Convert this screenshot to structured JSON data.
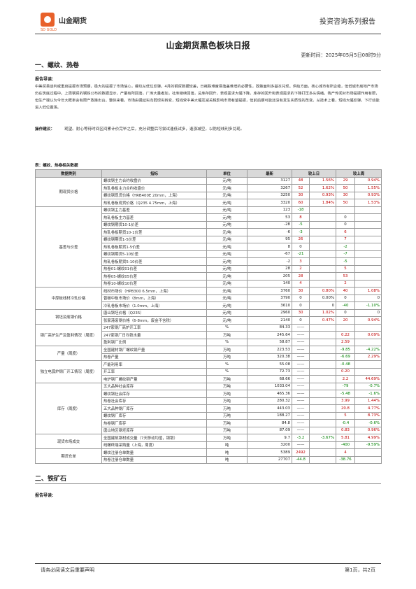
{
  "header": {
    "brand": "山金期货",
    "brand_sub": "SD GOLD",
    "series": "投资咨询系列报告"
  },
  "title": "山金期货黑色板块日报",
  "update_time": "更新时间：2025年05月5日08时9分",
  "section1": {
    "heading": "一、螺纹、热卷",
    "guide_label": "报告导读：",
    "guide_text": "中美贸易谈判或重启提振市场预期，极大的提振了市场信心，螺纹从低位反弹。4月的钢贸数据较差，日耗跌难度易落盖难增的必要性，政策面利多基本兑现。供给方面，核心城市有所企稳，但低城市房地产市场仍在筑底过程中。上周钢贸的钢铁公布的数据显示，产量有所回落，厂库大量者加，社库继续回落，总库存回升，表观需求大幅下降。库存的回升和表观需求的下降打压多头情绪。我产传闻对市场提振作用有限，但生产端认为今年大概率会有限产政策出台。整体来看，市场由强延实向弱现实转变，短线受中美大幅互减关税影响市场有望提振，但前后期可能还没有发生实质性的改变。从技术上看，短线大幅反弹，下行动能进入低位震荡。",
    "suggestion_label": "操作建议：",
    "suggestion_text": "观望。耐心等待时间区间累计价完毕之后，充分调整后可尝试逢低试多，逢涨减空，以防短线利多兑现。",
    "table_caption": "表：螺纹、热卷相关数据"
  },
  "table": {
    "headers": [
      "数据类别",
      "指标",
      "单位",
      "最新",
      "较上日",
      "较上周"
    ],
    "groups": [
      {
        "category": "期现货价格",
        "rows": [
          [
            "螺纹钢主力合约收盘价",
            "元/吨",
            "3127",
            "48",
            "1.56%",
            "29",
            "0.94%"
          ],
          [
            "热轧卷板主力合约收盘价",
            "元/吨",
            "3267",
            "52",
            "1.62%",
            "50",
            "1.55%"
          ],
          [
            "螺纹钢现货价格（HRB400E 20mm，上海）",
            "元/吨",
            "3250",
            "30",
            "0.93%",
            "30",
            "0.93%"
          ],
          [
            "热轧卷板现货价格（Q235 4.75mm，上海）",
            "元/吨",
            "3320",
            "60",
            "1.84%",
            "50",
            "1.53%"
          ]
        ]
      },
      {
        "category": "基差与价差",
        "rows": [
          [
            "螺纹钢主力基差",
            "元/吨",
            "123",
            "-18",
            "",
            "",
            ""
          ],
          [
            "热轧卷板主力基差",
            "元/吨",
            "53",
            "8",
            "",
            "0",
            ""
          ],
          [
            "螺纹钢期货10-1价差",
            "元/吨",
            "-28",
            "-5",
            "",
            "0",
            ""
          ],
          [
            "热轧卷板期货10-1价差",
            "元/吨",
            "-6",
            "-3",
            "",
            "6",
            ""
          ],
          [
            "螺纹钢期货1-5价差",
            "元/吨",
            "95",
            "26",
            "",
            "7",
            ""
          ],
          [
            "热轧卷板期货1-5价差",
            "元/吨",
            "8",
            "0",
            "",
            "-2",
            ""
          ],
          [
            "螺纹钢期货5-10价差",
            "元/吨",
            "-67",
            "-21",
            "",
            "-7",
            ""
          ],
          [
            "热轧卷板期货5-10价差",
            "元/吨",
            "-2",
            "3",
            "",
            "-5",
            ""
          ],
          [
            "热卷01-螺纹01价差",
            "元/吨",
            "28",
            "2",
            "",
            "5",
            ""
          ],
          [
            "热卷05-螺纹05价差",
            "元/吨",
            "205",
            "28",
            "",
            "53",
            ""
          ],
          [
            "热卷10-螺纹10价差",
            "元/吨",
            "140",
            "4",
            "",
            "2",
            ""
          ]
        ]
      },
      {
        "category": "中厚板线材冷轧价格",
        "rows": [
          [
            "线材市场价（HPB300 6.5mm，上海）",
            "元/吨",
            "3760",
            "30",
            "0.80%",
            "40",
            "1.08%"
          ],
          [
            "普碳中板市场价（8mm，上海）",
            "元/吨",
            "3790",
            "0",
            "0.00%",
            "0",
            "0"
          ],
          [
            "冷轧卷板市场价（1.0mm，上海）",
            "元/吨",
            "3610",
            "0",
            "0",
            "-40",
            "-1.10%"
          ]
        ]
      },
      {
        "category": "钢坯及废钢价格",
        "rows": [
          [
            "唐山钢坯价格（Q235）",
            "元/吨",
            "2960",
            "30",
            "1.02%",
            "0",
            "0"
          ],
          [
            "张家港废钢价格（6-8mm，废金不含税）",
            "元/吨",
            "2140",
            "0",
            "0.47%",
            "20",
            "0.94%"
          ]
        ]
      },
      {
        "category": "钢厂高炉生产及盈利情况（周度）",
        "rows": [
          [
            "247家钢厂高炉开工率",
            "%",
            "84.33",
            "——",
            "",
            "",
            ""
          ],
          [
            "247家钢厂日均铁水量",
            "万吨",
            "245.64",
            "——",
            "",
            "0.22",
            "0.09%"
          ],
          [
            "盈利钢厂比例",
            "%",
            "58.87",
            "——",
            "",
            "2.59",
            ""
          ]
        ]
      },
      {
        "category": "产量（周度）",
        "rows": [
          [
            "全国建材钢厂螺纹钢产量",
            "万吨",
            "223.53",
            "——",
            "",
            "-9.85",
            "-4.22%"
          ],
          [
            "热卷产量",
            "万吨",
            "320.38",
            "——",
            "",
            "-6.69",
            "2.29%"
          ]
        ]
      },
      {
        "category": "独立电弧炉钢厂开工情况（周度）",
        "rows": [
          [
            "产能利用率",
            "%",
            "55.08",
            "——",
            "",
            "-0.48",
            ""
          ],
          [
            "开工率",
            "%",
            "72.73",
            "——",
            "",
            "0.20",
            ""
          ],
          [
            "电炉钢厂螺纹钢产量",
            "万吨",
            "68.66",
            "——",
            "",
            "2.2",
            "44.69%"
          ]
        ]
      },
      {
        "category": "库存（周度）",
        "rows": [
          [
            "五大品种社会库存",
            "万吨",
            "1033.04",
            "——",
            "",
            "-79",
            "-0.7%"
          ],
          [
            "螺纹钢社会库存",
            "万吨",
            "465.36",
            "——",
            "",
            "-5.48",
            "-1.6%"
          ],
          [
            "热卷社会库存",
            "万吨",
            "280.32",
            "——",
            "",
            "3.99",
            "1.44%"
          ],
          [
            "五大品种钢厂库存",
            "万吨",
            "443.03",
            "——",
            "",
            "20.8",
            "4.77%"
          ],
          [
            "螺纹钢厂库存",
            "万吨",
            "188.27",
            "——",
            "",
            "5",
            "8.73%"
          ],
          [
            "热卷钢厂库存",
            "万吨",
            "84.8",
            "——",
            "",
            "-0.4",
            "-0.6%"
          ],
          [
            "唐山地区钢坯库存",
            "万吨",
            "87.09",
            "——",
            "",
            "0.83",
            "0.96%"
          ]
        ]
      },
      {
        "category": "现货市场成交",
        "rows": [
          [
            "全国建筑钢材成交量（7天移动均值，钢银）",
            "万吨",
            "9.7",
            "-3.2",
            "-3.67%",
            "5.81",
            "4.99%"
          ],
          [
            "线螺终端采购量（上海，周度）",
            "吨",
            "3200",
            "——",
            "",
            "-400",
            "-9.59%"
          ]
        ]
      },
      {
        "category": "期货仓单",
        "rows": [
          [
            "螺纹注册仓单数量",
            "吨",
            "5389",
            "2492",
            "",
            "4",
            ""
          ],
          [
            "热卷注册仓单数量",
            "吨",
            "27707",
            "-44.8",
            "",
            "-38.76",
            ""
          ]
        ]
      }
    ]
  },
  "section2": {
    "heading": "二、铁矿石",
    "guide_label": "报告导读："
  },
  "footer": {
    "left": "请务必阅读文后重要声明",
    "right": "第1页，共2页"
  },
  "colors": {
    "accent": "#e8612a",
    "up": "#c00000",
    "down": "#008000",
    "header_bg": "#d9d9d9"
  }
}
